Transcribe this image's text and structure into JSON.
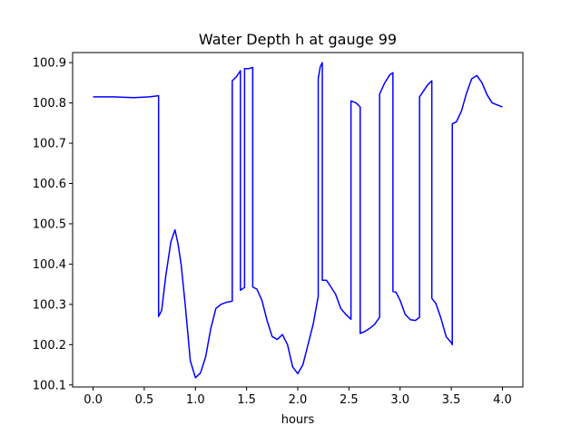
{
  "chart_data": {
    "type": "line",
    "title": "Water Depth h at gauge 99",
    "xlabel": "hours",
    "ylabel": "",
    "xlim": [
      -0.2,
      4.2
    ],
    "ylim": [
      100.095,
      100.925
    ],
    "grid": false,
    "x_ticks": [
      0.0,
      0.5,
      1.0,
      1.5,
      2.0,
      2.5,
      3.0,
      3.5,
      4.0
    ],
    "x_tick_labels": [
      "0.0",
      "0.5",
      "1.0",
      "1.5",
      "2.0",
      "2.5",
      "3.0",
      "3.5",
      "4.0"
    ],
    "y_ticks": [
      100.1,
      100.2,
      100.3,
      100.4,
      100.5,
      100.6,
      100.7,
      100.8,
      100.9
    ],
    "y_tick_labels": [
      "100.1",
      "100.2",
      "100.3",
      "100.4",
      "100.5",
      "100.6",
      "100.7",
      "100.8",
      "100.9"
    ],
    "series": [
      {
        "color": "#0000ff",
        "x": [
          0.0,
          0.2,
          0.4,
          0.55,
          0.64,
          0.64,
          0.67,
          0.71,
          0.76,
          0.8,
          0.83,
          0.86,
          0.9,
          0.95,
          1.0,
          1.05,
          1.1,
          1.15,
          1.2,
          1.25,
          1.3,
          1.36,
          1.36,
          1.4,
          1.44,
          1.44,
          1.48,
          1.48,
          1.52,
          1.56,
          1.56,
          1.6,
          1.65,
          1.7,
          1.75,
          1.8,
          1.85,
          1.9,
          1.95,
          2.0,
          2.05,
          2.1,
          2.15,
          2.2,
          2.2,
          2.22,
          2.24,
          2.24,
          2.28,
          2.32,
          2.37,
          2.42,
          2.47,
          2.52,
          2.52,
          2.57,
          2.61,
          2.61,
          2.65,
          2.7,
          2.75,
          2.8,
          2.8,
          2.85,
          2.9,
          2.93,
          2.93,
          2.96,
          3.0,
          3.05,
          3.1,
          3.15,
          3.19,
          3.19,
          3.23,
          3.27,
          3.31,
          3.31,
          3.35,
          3.4,
          3.45,
          3.5,
          3.51,
          3.51,
          3.55,
          3.6,
          3.65,
          3.7,
          3.75,
          3.8,
          3.85,
          3.9,
          3.95,
          4.0
        ],
        "y": [
          100.815,
          100.815,
          100.813,
          100.815,
          100.818,
          100.27,
          100.285,
          100.37,
          100.455,
          100.485,
          100.45,
          100.4,
          100.3,
          100.16,
          100.118,
          100.13,
          100.17,
          100.24,
          100.29,
          100.3,
          100.305,
          100.308,
          100.855,
          100.865,
          100.88,
          100.335,
          100.342,
          100.885,
          100.885,
          100.888,
          100.343,
          100.338,
          100.31,
          100.26,
          100.22,
          100.213,
          100.225,
          100.2,
          100.145,
          100.128,
          100.15,
          100.2,
          100.25,
          100.32,
          100.86,
          100.89,
          100.9,
          100.36,
          100.36,
          100.345,
          100.325,
          100.29,
          100.275,
          100.263,
          100.805,
          100.8,
          100.79,
          100.228,
          100.232,
          100.24,
          100.25,
          100.268,
          100.822,
          100.85,
          100.87,
          100.875,
          100.332,
          100.33,
          100.31,
          100.275,
          100.262,
          100.26,
          100.268,
          100.815,
          100.83,
          100.845,
          100.855,
          100.315,
          100.302,
          100.265,
          100.22,
          100.205,
          100.2,
          100.748,
          100.753,
          100.78,
          100.825,
          100.86,
          100.868,
          100.85,
          100.82,
          100.8,
          100.795,
          100.79
        ]
      }
    ]
  }
}
